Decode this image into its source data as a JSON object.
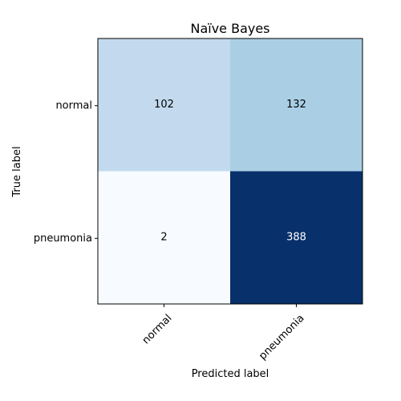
{
  "chart_data": {
    "type": "heatmap",
    "title": "Naïve Bayes",
    "xlabel": "Predicted label",
    "ylabel": "True label",
    "x_categories": [
      "normal",
      "pneumonia"
    ],
    "y_categories": [
      "normal",
      "pneumonia"
    ],
    "values": [
      [
        102,
        132
      ],
      [
        2,
        388
      ]
    ],
    "colormap": "Blues",
    "value_range": [
      2,
      388
    ],
    "grid": false
  }
}
